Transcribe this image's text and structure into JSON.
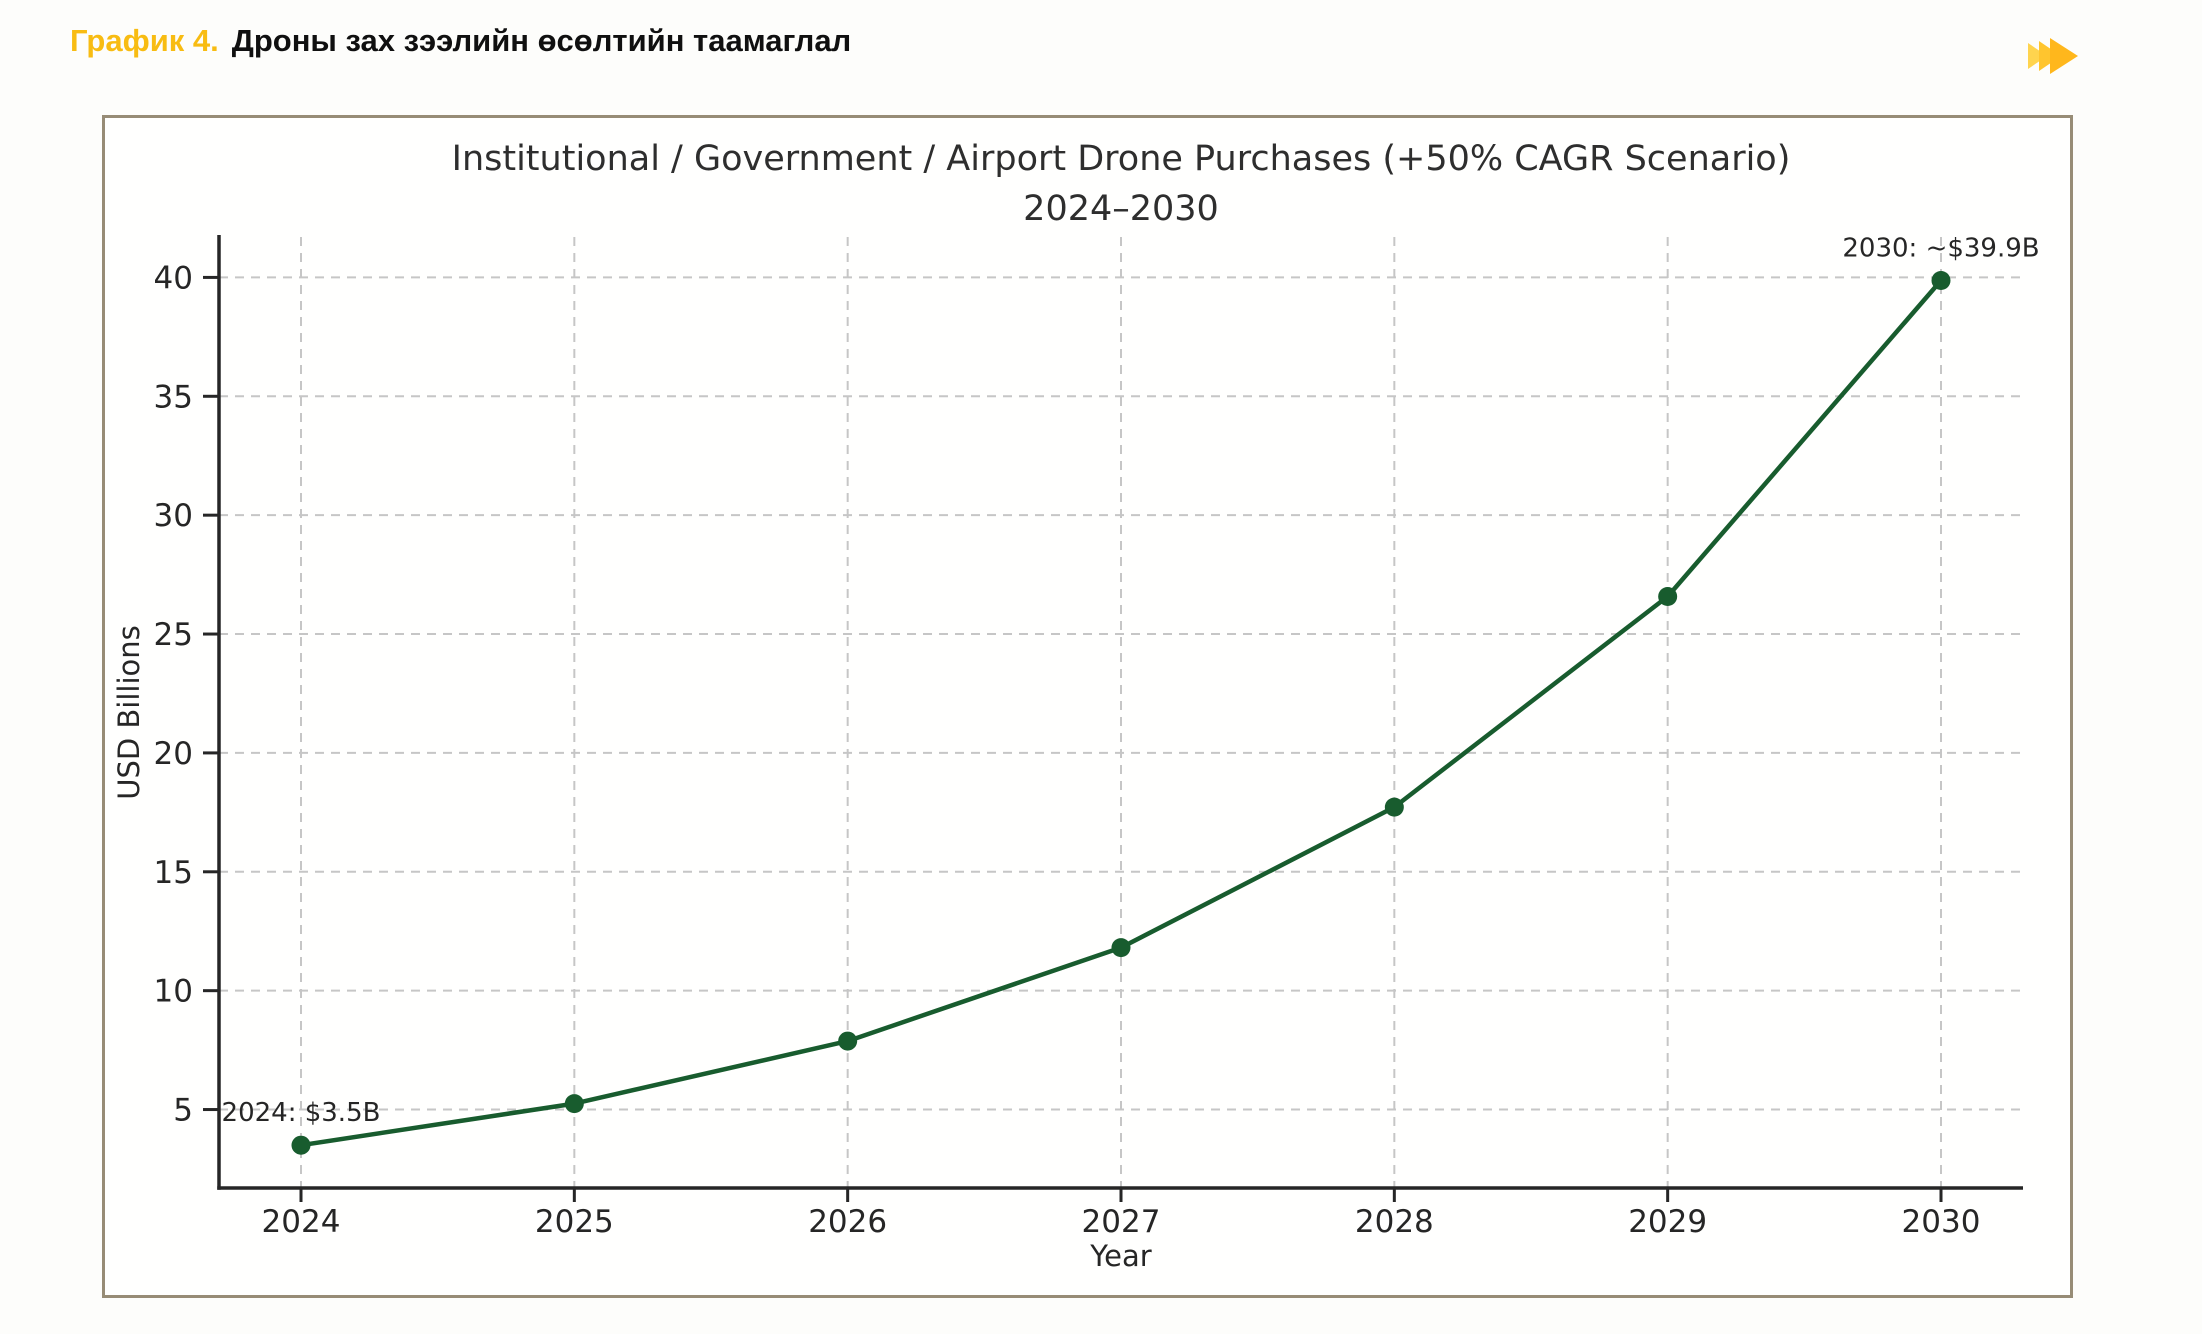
{
  "header": {
    "figure_label": "График 4.",
    "title": "Дроны зах зээлийн өсөлтийн таамаглал",
    "accent_color": "#F8BC12"
  },
  "icon": {
    "name": "fast-forward-icon",
    "colors": [
      "#FFD44E",
      "#FFC52E",
      "#FFB71C"
    ]
  },
  "panel": {
    "border_color": "#978C76",
    "background": "#FFFFFE"
  },
  "chart_data": {
    "type": "line",
    "title": "Institutional / Government / Airport Drone Purchases (+50% CAGR Scenario)",
    "subtitle": "2024–2030",
    "xlabel": "Year",
    "ylabel": "USD Billions",
    "x": [
      2024,
      2025,
      2026,
      2027,
      2028,
      2029,
      2030
    ],
    "series": [
      {
        "name": "Institutional / Government / Airport drone purchases",
        "values": [
          3.5,
          5.25,
          7.88,
          11.81,
          17.72,
          26.58,
          39.87
        ]
      }
    ],
    "line_color": "#185C2E",
    "marker": "circle",
    "grid": true,
    "grid_color": "#C6C6C6",
    "legend": "none",
    "xticks": [
      2024,
      2025,
      2026,
      2027,
      2028,
      2029,
      2030
    ],
    "yticks": [
      5,
      10,
      15,
      20,
      25,
      30,
      35,
      40
    ],
    "xlim": [
      2023.7,
      2030.3
    ],
    "ylim": [
      1.7,
      41.7
    ],
    "annotations": [
      {
        "text": "2024: $3.5B",
        "x": 2024,
        "y": 3.5
      },
      {
        "text": "2030: ~$39.9B",
        "x": 2030,
        "y": 39.87
      }
    ]
  }
}
